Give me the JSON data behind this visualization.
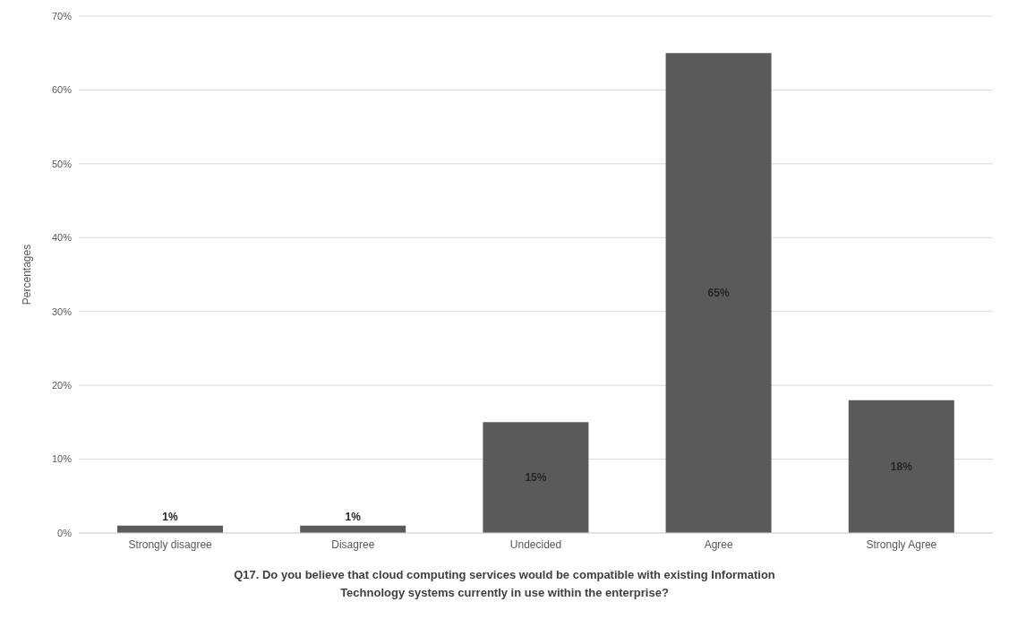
{
  "chart_data": {
    "type": "bar",
    "xlabel": "Q17. Do you believe that cloud computing services would be compatible with existing Information Technology systems currently in use within the enterprise?",
    "ylabel": "Percentages",
    "categories": [
      "Strongly disagree",
      "Disagree",
      "Undecided",
      "Agree",
      "Strongly Agree"
    ],
    "values": [
      1,
      1,
      15,
      65,
      18
    ],
    "value_labels": [
      "1%",
      "1%",
      "15%",
      "65%",
      "18%"
    ],
    "color": "#5a5a5a",
    "ylim": [
      0,
      70
    ],
    "yticks": [
      {
        "value": 0,
        "label": "0%"
      },
      {
        "value": 10,
        "label": "10%"
      },
      {
        "value": 20,
        "label": "20%"
      },
      {
        "value": 30,
        "label": "30%"
      },
      {
        "value": 40,
        "label": "40%"
      },
      {
        "value": 50,
        "label": "50%"
      },
      {
        "value": 60,
        "label": "60%"
      },
      {
        "value": 70,
        "label": "70%"
      }
    ],
    "grid": "y",
    "legend": false
  }
}
